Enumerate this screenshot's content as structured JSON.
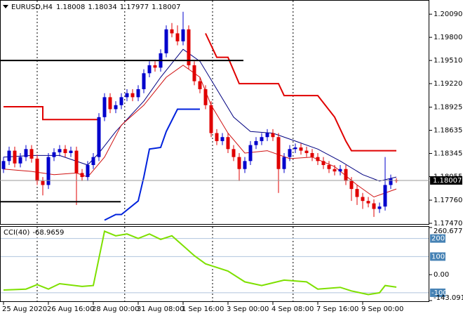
{
  "chart_data": {
    "type": "candlestick",
    "symbol": "EURUSD,H4",
    "open": [
      1.1815,
      1.1825,
      1.1838,
      1.1822,
      1.183,
      1.184,
      1.1828,
      1.18,
      1.1795,
      1.183,
      1.1836,
      1.184,
      1.1835,
      1.1838,
      1.181,
      1.1805,
      1.182,
      1.183,
      1.188,
      1.1905,
      1.189,
      1.1895,
      1.1905,
      1.191,
      1.1905,
      1.1915,
      1.1935,
      1.1945,
      1.1942,
      1.196,
      1.199,
      1.1985,
      1.1975,
      1.199,
      1.1945,
      1.1925,
      1.1915,
      1.1895,
      1.186,
      1.185,
      1.1855,
      1.184,
      1.183,
      1.1815,
      1.1825,
      1.1845,
      1.185,
      1.1855,
      1.186,
      1.1855,
      1.1815,
      1.183,
      1.184,
      1.1842,
      1.1838,
      1.1835,
      1.183,
      1.1825,
      1.182,
      1.1815,
      1.1812,
      1.1815,
      1.18,
      1.179,
      1.178,
      1.1775,
      1.1772,
      1.1765,
      1.1768,
      1.1795,
      1.18008
    ],
    "high": [
      1.183,
      1.1843,
      1.1843,
      1.1835,
      1.1845,
      1.1845,
      1.1833,
      1.1805,
      1.1835,
      1.1841,
      1.1845,
      1.1845,
      1.1843,
      1.1843,
      1.1815,
      1.1825,
      1.1835,
      1.1885,
      1.191,
      1.191,
      1.19,
      1.191,
      1.1915,
      1.1915,
      1.192,
      1.194,
      1.195,
      1.195,
      1.1965,
      1.1995,
      1.1998,
      1.1995,
      1.2012,
      1.1995,
      1.195,
      1.193,
      1.192,
      1.19,
      1.1865,
      1.186,
      1.186,
      1.1845,
      1.1835,
      1.183,
      1.185,
      1.1855,
      1.186,
      1.1865,
      1.1865,
      1.186,
      1.1835,
      1.1845,
      1.1847,
      1.1847,
      1.1843,
      1.184,
      1.1835,
      1.183,
      1.1825,
      1.182,
      1.182,
      1.182,
      1.1805,
      1.1795,
      1.1785,
      1.178,
      1.1777,
      1.1773,
      1.183,
      1.1808,
      1.18034
    ],
    "low": [
      1.181,
      1.182,
      1.1817,
      1.1817,
      1.1825,
      1.1823,
      1.1795,
      1.1782,
      1.179,
      1.1825,
      1.1831,
      1.183,
      1.183,
      1.177,
      1.18,
      1.18,
      1.1815,
      1.1825,
      1.1875,
      1.1885,
      1.1885,
      1.189,
      1.19,
      1.19,
      1.19,
      1.191,
      1.193,
      1.1937,
      1.1937,
      1.1955,
      1.198,
      1.197,
      1.197,
      1.194,
      1.192,
      1.191,
      1.189,
      1.1855,
      1.1845,
      1.1845,
      1.1835,
      1.1825,
      1.18,
      1.181,
      1.182,
      1.184,
      1.1845,
      1.185,
      1.185,
      1.1785,
      1.181,
      1.1825,
      1.1835,
      1.1833,
      1.183,
      1.1825,
      1.182,
      1.1815,
      1.181,
      1.1807,
      1.1807,
      1.1795,
      1.1775,
      1.177,
      1.1765,
      1.1767,
      1.1755,
      1.176,
      1.1763,
      1.179,
      1.17977
    ],
    "close": [
      1.1825,
      1.1838,
      1.1822,
      1.183,
      1.184,
      1.1828,
      1.18,
      1.1795,
      1.183,
      1.1836,
      1.184,
      1.1835,
      1.1838,
      1.181,
      1.1805,
      1.182,
      1.183,
      1.188,
      1.1905,
      1.189,
      1.1895,
      1.1905,
      1.191,
      1.1905,
      1.1915,
      1.1935,
      1.1945,
      1.1942,
      1.196,
      1.199,
      1.1985,
      1.1975,
      1.199,
      1.1945,
      1.1925,
      1.1915,
      1.1895,
      1.186,
      1.185,
      1.1855,
      1.184,
      1.183,
      1.1815,
      1.1825,
      1.1845,
      1.185,
      1.1855,
      1.186,
      1.1855,
      1.1815,
      1.183,
      1.184,
      1.1842,
      1.1838,
      1.1835,
      1.183,
      1.1825,
      1.182,
      1.1815,
      1.1812,
      1.1815,
      1.18,
      1.179,
      1.178,
      1.1775,
      1.1772,
      1.1765,
      1.1768,
      1.1795,
      1.1803,
      1.18007
    ],
    "bull_color": "#0000cc",
    "bear_color": "#e00000",
    "ylim": [
      1.1747,
      1.2025
    ],
    "yticks": [
      {
        "value": 1.2009,
        "label": "1.20090"
      },
      {
        "value": 1.198,
        "label": "1.19800"
      },
      {
        "value": 1.1951,
        "label": "1.19510"
      },
      {
        "value": 1.1922,
        "label": "1.19220"
      },
      1.18925,
      1.18635,
      1.18345,
      1.18055,
      {
        "value": 1.1776,
        "label": "1.17760"
      },
      {
        "value": 1.1747,
        "label": "1.17470"
      }
    ],
    "lines": [
      {
        "color": "#e00000",
        "width": 2,
        "x": [
          0,
          7,
          7,
          17,
          17,
          36,
          38,
          40,
          42,
          49,
          50,
          56,
          59,
          61,
          62,
          70
        ],
        "values": [
          1.1893,
          1.1893,
          1.1877,
          1.1877,
          null,
          1.1985,
          1.1955,
          1.1955,
          1.1922,
          1.1922,
          1.1907,
          1.1907,
          1.188,
          1.185,
          1.1838,
          1.1838
        ]
      },
      {
        "color": "#0022dd",
        "width": 2,
        "x": [
          18,
          20,
          21,
          24,
          25,
          26,
          28,
          29,
          31,
          35
        ],
        "values": [
          1.1751,
          1.1758,
          1.1758,
          1.1775,
          1.1805,
          1.184,
          1.1842,
          1.1862,
          1.189,
          1.189
        ]
      },
      {
        "color": "#000080",
        "width": 1,
        "x": [
          0,
          5,
          10,
          15,
          17,
          20,
          25,
          28,
          32,
          35,
          38,
          41,
          44,
          48,
          52,
          56,
          60,
          64,
          67,
          70
        ],
        "values": [
          1.183,
          1.1832,
          1.1832,
          1.182,
          1.1835,
          1.1862,
          1.19,
          1.193,
          1.1965,
          1.195,
          1.1915,
          1.188,
          1.1862,
          1.186,
          1.185,
          1.184,
          1.1825,
          1.1808,
          1.18,
          1.1805
        ]
      },
      {
        "color": "#d01010",
        "width": 1,
        "x": [
          0,
          5,
          9,
          13,
          15,
          18,
          21,
          25,
          29,
          32,
          35,
          37,
          40,
          43,
          47,
          51,
          55,
          59,
          63,
          66,
          70
        ],
        "values": [
          1.1815,
          1.1812,
          1.1808,
          1.181,
          1.1805,
          1.183,
          1.187,
          1.1895,
          1.193,
          1.1945,
          1.193,
          1.1895,
          1.186,
          1.1835,
          1.1838,
          1.1828,
          1.183,
          1.1818,
          1.1795,
          1.178,
          1.179
        ]
      }
    ],
    "hlines": [
      {
        "value": 1.1951,
        "x": [
          -0.6,
          42.75
        ],
        "color": "#000000"
      },
      {
        "value": 1.1774,
        "x": [
          -0.6,
          20.9
        ],
        "color": "#000000"
      }
    ],
    "xgrid": [
      6,
      21.6,
      37.25,
      51.6
    ],
    "xticks": [
      {
        "value": 0,
        "label": "25 Aug 2020"
      },
      {
        "value": 8,
        "label": "26 Aug 16:00"
      },
      {
        "value": 16,
        "label": "28 Aug 00:00"
      },
      {
        "value": 24,
        "label": "31 Aug 08:00"
      },
      {
        "value": 32,
        "label": "1 Sep 16:00"
      },
      {
        "value": 40,
        "label": "3 Sep 00:00"
      },
      {
        "value": 48,
        "label": "4 Sep 08:00"
      },
      {
        "value": 56,
        "label": "7 Sep 16:00"
      },
      {
        "value": 64,
        "label": "9 Sep 00:00"
      }
    ],
    "indicator": {
      "name": "CCI(40)",
      "color": "#7ee000",
      "x": [
        0,
        4,
        6,
        8,
        10,
        14,
        16,
        18,
        20,
        22,
        24,
        26,
        28,
        30,
        32,
        34,
        36,
        40,
        43,
        46,
        50,
        54,
        56,
        60,
        62,
        65,
        67,
        68,
        70
      ],
      "values": [
        -85,
        -80,
        -55,
        -80,
        -50,
        -65,
        -60,
        240,
        215,
        225,
        200,
        225,
        195,
        215,
        160,
        105,
        60,
        20,
        -40,
        -60,
        -30,
        -40,
        -80,
        -70,
        -90,
        -110,
        -100,
        -60,
        -68.9659
      ],
      "ylim": [
        -143.0911,
        260.6777
      ],
      "yticks": [
        260.6777,
        {
          "value": 0,
          "label": "0.00"
        },
        -143.0911
      ],
      "levels": [
        200,
        100,
        -100
      ],
      "level_color": "#4682b4"
    }
  }
}
